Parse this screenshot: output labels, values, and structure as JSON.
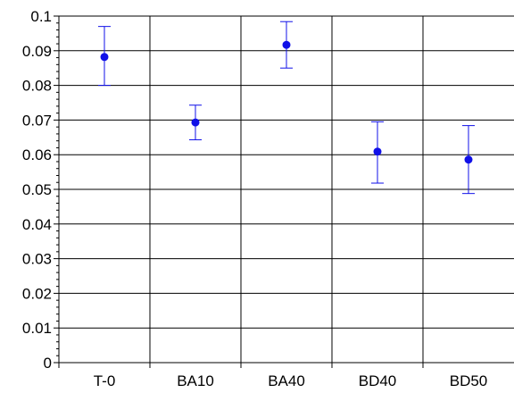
{
  "chart_data": {
    "type": "scatter",
    "title": "",
    "xlabel": "",
    "ylabel": "",
    "categories": [
      "T-0",
      "BA10",
      "BA40",
      "BD40",
      "BD50"
    ],
    "ylim": [
      0,
      0.1
    ],
    "yticks": [
      "0",
      "0.01",
      "0.02",
      "0.03",
      "0.04",
      "0.05",
      "0.06",
      "0.07",
      "0.08",
      "0.09",
      "0.1"
    ],
    "grid": true,
    "legend": "none",
    "series": [
      {
        "values": [
          0.0882,
          0.0693,
          0.0917,
          0.0609,
          0.0586
        ],
        "error_low": [
          0.08,
          0.0643,
          0.085,
          0.0518,
          0.0488
        ],
        "error_high": [
          0.097,
          0.0743,
          0.0984,
          0.0695,
          0.0684
        ]
      }
    ],
    "colors": {
      "marker": "#1010e8",
      "grid": "#000000",
      "axis": "#000000"
    }
  }
}
